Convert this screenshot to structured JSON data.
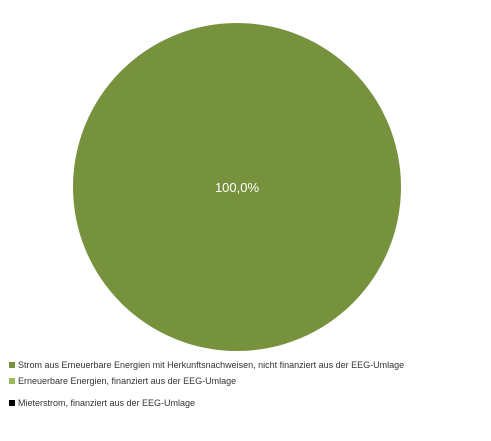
{
  "chart_data": {
    "type": "pie",
    "title": "",
    "slices": [
      {
        "label": "Strom aus Erneuerbare Energien mit Herkunftsnachweisen, nicht finanziert aus der EEG-Umlage",
        "value": 100.0,
        "display": "100,0%",
        "color": "#76923c"
      },
      {
        "label": "Erneuerbare Energien, finanziert aus der EEG-Umlage",
        "value": 0.0,
        "display": "",
        "color": "#9bbb59"
      },
      {
        "label": "Mieterstrom, finanziert aus der EEG-Umlage",
        "value": 0.0,
        "display": "",
        "color": "#000000"
      }
    ],
    "legend_position": "bottom",
    "label_color": "#ffffff"
  }
}
